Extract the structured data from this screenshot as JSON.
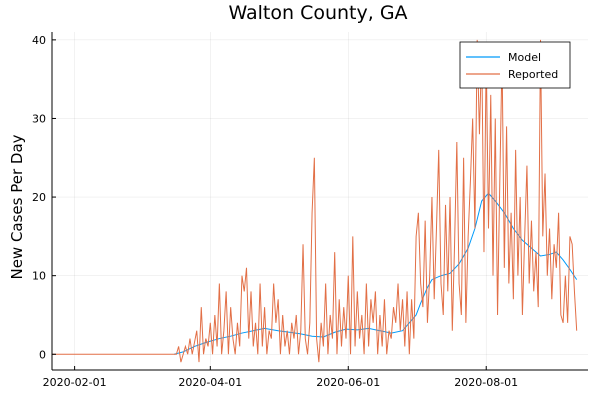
{
  "chart_data": {
    "type": "line",
    "title": "Walton County, GA",
    "xlabel": "",
    "ylabel": "New Cases Per Day",
    "x_axis_type": "date",
    "xlim": [
      "2020-01-22",
      "2020-09-15"
    ],
    "ylim": [
      -2,
      41
    ],
    "x_ticks": [
      "2020-02-01",
      "2020-04-01",
      "2020-06-01",
      "2020-08-01"
    ],
    "y_ticks": [
      0,
      10,
      20,
      30,
      40
    ],
    "grid": true,
    "legend": "top-right",
    "series": [
      {
        "name": "Model",
        "color": "#009AFA",
        "points": [
          [
            "2020-03-16",
            0
          ],
          [
            "2020-03-20",
            0.3
          ],
          [
            "2020-03-25",
            1.0
          ],
          [
            "2020-03-30",
            1.5
          ],
          [
            "2020-04-05",
            2.0
          ],
          [
            "2020-04-10",
            2.3
          ],
          [
            "2020-04-15",
            2.7
          ],
          [
            "2020-04-20",
            3.0
          ],
          [
            "2020-04-25",
            3.3
          ],
          [
            "2020-05-01",
            3.0
          ],
          [
            "2020-05-06",
            2.8
          ],
          [
            "2020-05-11",
            2.6
          ],
          [
            "2020-05-16",
            2.3
          ],
          [
            "2020-05-21",
            2.2
          ],
          [
            "2020-05-26",
            2.8
          ],
          [
            "2020-05-31",
            3.2
          ],
          [
            "2020-06-05",
            3.1
          ],
          [
            "2020-06-10",
            3.3
          ],
          [
            "2020-06-15",
            3.0
          ],
          [
            "2020-06-20",
            2.7
          ],
          [
            "2020-06-25",
            3.0
          ],
          [
            "2020-07-01",
            5.0
          ],
          [
            "2020-07-03",
            6.5
          ],
          [
            "2020-07-06",
            8.5
          ],
          [
            "2020-07-08",
            9.5
          ],
          [
            "2020-07-12",
            10.0
          ],
          [
            "2020-07-16",
            10.3
          ],
          [
            "2020-07-20",
            11.5
          ],
          [
            "2020-07-24",
            13.5
          ],
          [
            "2020-07-27",
            16.0
          ],
          [
            "2020-07-30",
            19.5
          ],
          [
            "2020-08-02",
            20.5
          ],
          [
            "2020-08-05",
            19.5
          ],
          [
            "2020-08-09",
            18.0
          ],
          [
            "2020-08-13",
            16.0
          ],
          [
            "2020-08-17",
            14.5
          ],
          [
            "2020-08-21",
            13.5
          ],
          [
            "2020-08-25",
            12.5
          ],
          [
            "2020-08-29",
            12.7
          ],
          [
            "2020-09-01",
            13.0
          ],
          [
            "2020-09-04",
            12.0
          ],
          [
            "2020-09-07",
            10.8
          ],
          [
            "2020-09-10",
            9.5
          ]
        ]
      },
      {
        "name": "Reported",
        "color": "#E26F46",
        "points": [
          [
            "2020-01-22",
            0
          ],
          [
            "2020-03-17",
            0
          ],
          [
            "2020-03-18",
            1
          ],
          [
            "2020-03-19",
            -1
          ],
          [
            "2020-03-21",
            1
          ],
          [
            "2020-03-22",
            0
          ],
          [
            "2020-03-23",
            2
          ],
          [
            "2020-03-24",
            0
          ],
          [
            "2020-03-26",
            3
          ],
          [
            "2020-03-27",
            -1
          ],
          [
            "2020-03-28",
            6
          ],
          [
            "2020-03-29",
            0
          ],
          [
            "2020-03-30",
            2
          ],
          [
            "2020-03-31",
            1
          ],
          [
            "2020-04-01",
            4
          ],
          [
            "2020-04-02",
            0
          ],
          [
            "2020-04-03",
            5
          ],
          [
            "2020-04-04",
            1
          ],
          [
            "2020-04-05",
            9
          ],
          [
            "2020-04-06",
            0
          ],
          [
            "2020-04-07",
            3
          ],
          [
            "2020-04-08",
            8
          ],
          [
            "2020-04-09",
            0
          ],
          [
            "2020-04-10",
            6
          ],
          [
            "2020-04-11",
            2
          ],
          [
            "2020-04-12",
            0
          ],
          [
            "2020-04-13",
            4
          ],
          [
            "2020-04-14",
            1
          ],
          [
            "2020-04-15",
            10
          ],
          [
            "2020-04-16",
            8
          ],
          [
            "2020-04-17",
            11
          ],
          [
            "2020-04-18",
            2
          ],
          [
            "2020-04-19",
            8
          ],
          [
            "2020-04-20",
            1
          ],
          [
            "2020-04-21",
            4
          ],
          [
            "2020-04-22",
            0
          ],
          [
            "2020-04-23",
            9
          ],
          [
            "2020-04-24",
            1
          ],
          [
            "2020-04-25",
            6
          ],
          [
            "2020-04-26",
            0
          ],
          [
            "2020-04-27",
            3
          ],
          [
            "2020-04-28",
            2
          ],
          [
            "2020-04-29",
            9
          ],
          [
            "2020-04-30",
            4
          ],
          [
            "2020-05-01",
            7
          ],
          [
            "2020-05-02",
            0
          ],
          [
            "2020-05-03",
            5
          ],
          [
            "2020-05-04",
            1
          ],
          [
            "2020-05-05",
            3
          ],
          [
            "2020-05-06",
            0
          ],
          [
            "2020-05-07",
            4
          ],
          [
            "2020-05-08",
            2
          ],
          [
            "2020-05-09",
            5
          ],
          [
            "2020-05-10",
            0
          ],
          [
            "2020-05-11",
            3
          ],
          [
            "2020-05-12",
            14
          ],
          [
            "2020-05-13",
            2
          ],
          [
            "2020-05-14",
            0
          ],
          [
            "2020-05-15",
            4
          ],
          [
            "2020-05-16",
            18
          ],
          [
            "2020-05-17",
            25
          ],
          [
            "2020-05-18",
            2
          ],
          [
            "2020-05-19",
            -1
          ],
          [
            "2020-05-20",
            4
          ],
          [
            "2020-05-21",
            1
          ],
          [
            "2020-05-22",
            9
          ],
          [
            "2020-05-23",
            0
          ],
          [
            "2020-05-24",
            5
          ],
          [
            "2020-05-25",
            2
          ],
          [
            "2020-05-26",
            13
          ],
          [
            "2020-05-27",
            0
          ],
          [
            "2020-05-28",
            7
          ],
          [
            "2020-05-29",
            1
          ],
          [
            "2020-05-30",
            6
          ],
          [
            "2020-05-31",
            2
          ],
          [
            "2020-06-01",
            10
          ],
          [
            "2020-06-02",
            0
          ],
          [
            "2020-06-03",
            15
          ],
          [
            "2020-06-04",
            1
          ],
          [
            "2020-06-05",
            8
          ],
          [
            "2020-06-06",
            2
          ],
          [
            "2020-06-07",
            5
          ],
          [
            "2020-06-08",
            0
          ],
          [
            "2020-06-09",
            9
          ],
          [
            "2020-06-10",
            1
          ],
          [
            "2020-06-11",
            7
          ],
          [
            "2020-06-12",
            4
          ],
          [
            "2020-06-13",
            8
          ],
          [
            "2020-06-14",
            0
          ],
          [
            "2020-06-15",
            5
          ],
          [
            "2020-06-16",
            1
          ],
          [
            "2020-06-17",
            7
          ],
          [
            "2020-06-18",
            0
          ],
          [
            "2020-06-19",
            3
          ],
          [
            "2020-06-20",
            2
          ],
          [
            "2020-06-21",
            6
          ],
          [
            "2020-06-22",
            4
          ],
          [
            "2020-06-23",
            9
          ],
          [
            "2020-06-24",
            3
          ],
          [
            "2020-06-25",
            7
          ],
          [
            "2020-06-26",
            1
          ],
          [
            "2020-06-27",
            8
          ],
          [
            "2020-06-28",
            0
          ],
          [
            "2020-06-29",
            7
          ],
          [
            "2020-06-30",
            2
          ],
          [
            "2020-07-01",
            15
          ],
          [
            "2020-07-02",
            18
          ],
          [
            "2020-07-03",
            9
          ],
          [
            "2020-07-04",
            6
          ],
          [
            "2020-07-05",
            17
          ],
          [
            "2020-07-06",
            4
          ],
          [
            "2020-07-07",
            10
          ],
          [
            "2020-07-08",
            20
          ],
          [
            "2020-07-09",
            7
          ],
          [
            "2020-07-10",
            16
          ],
          [
            "2020-07-11",
            26
          ],
          [
            "2020-07-12",
            9
          ],
          [
            "2020-07-13",
            5
          ],
          [
            "2020-07-14",
            19
          ],
          [
            "2020-07-15",
            8
          ],
          [
            "2020-07-16",
            20
          ],
          [
            "2020-07-17",
            3
          ],
          [
            "2020-07-18",
            14
          ],
          [
            "2020-07-19",
            27
          ],
          [
            "2020-07-20",
            9
          ],
          [
            "2020-07-21",
            5
          ],
          [
            "2020-07-22",
            25
          ],
          [
            "2020-07-23",
            4
          ],
          [
            "2020-07-24",
            15
          ],
          [
            "2020-07-25",
            22
          ],
          [
            "2020-07-26",
            30
          ],
          [
            "2020-07-27",
            16
          ],
          [
            "2020-07-28",
            40
          ],
          [
            "2020-07-29",
            28
          ],
          [
            "2020-07-30",
            39
          ],
          [
            "2020-07-31",
            13
          ],
          [
            "2020-08-01",
            38
          ],
          [
            "2020-08-02",
            16
          ],
          [
            "2020-08-03",
            33
          ],
          [
            "2020-08-04",
            10
          ],
          [
            "2020-08-05",
            30
          ],
          [
            "2020-08-06",
            5
          ],
          [
            "2020-08-07",
            22
          ],
          [
            "2020-08-08",
            38
          ],
          [
            "2020-08-09",
            11
          ],
          [
            "2020-08-10",
            29
          ],
          [
            "2020-08-11",
            9
          ],
          [
            "2020-08-12",
            18
          ],
          [
            "2020-08-13",
            7
          ],
          [
            "2020-08-14",
            26
          ],
          [
            "2020-08-15",
            10
          ],
          [
            "2020-08-16",
            20
          ],
          [
            "2020-08-17",
            5
          ],
          [
            "2020-08-18",
            15
          ],
          [
            "2020-08-19",
            24
          ],
          [
            "2020-08-20",
            9
          ],
          [
            "2020-08-21",
            17
          ],
          [
            "2020-08-22",
            8
          ],
          [
            "2020-08-23",
            13
          ],
          [
            "2020-08-24",
            6
          ],
          [
            "2020-08-25",
            40
          ],
          [
            "2020-08-26",
            15
          ],
          [
            "2020-08-27",
            23
          ],
          [
            "2020-08-28",
            10
          ],
          [
            "2020-08-29",
            16
          ],
          [
            "2020-08-30",
            7
          ],
          [
            "2020-08-31",
            14
          ],
          [
            "2020-09-01",
            11
          ],
          [
            "2020-09-02",
            18
          ],
          [
            "2020-09-03",
            5
          ],
          [
            "2020-09-04",
            4
          ],
          [
            "2020-09-05",
            10
          ],
          [
            "2020-09-06",
            4
          ],
          [
            "2020-09-07",
            15
          ],
          [
            "2020-09-08",
            14
          ],
          [
            "2020-09-09",
            8
          ],
          [
            "2020-09-10",
            3
          ]
        ]
      }
    ]
  }
}
